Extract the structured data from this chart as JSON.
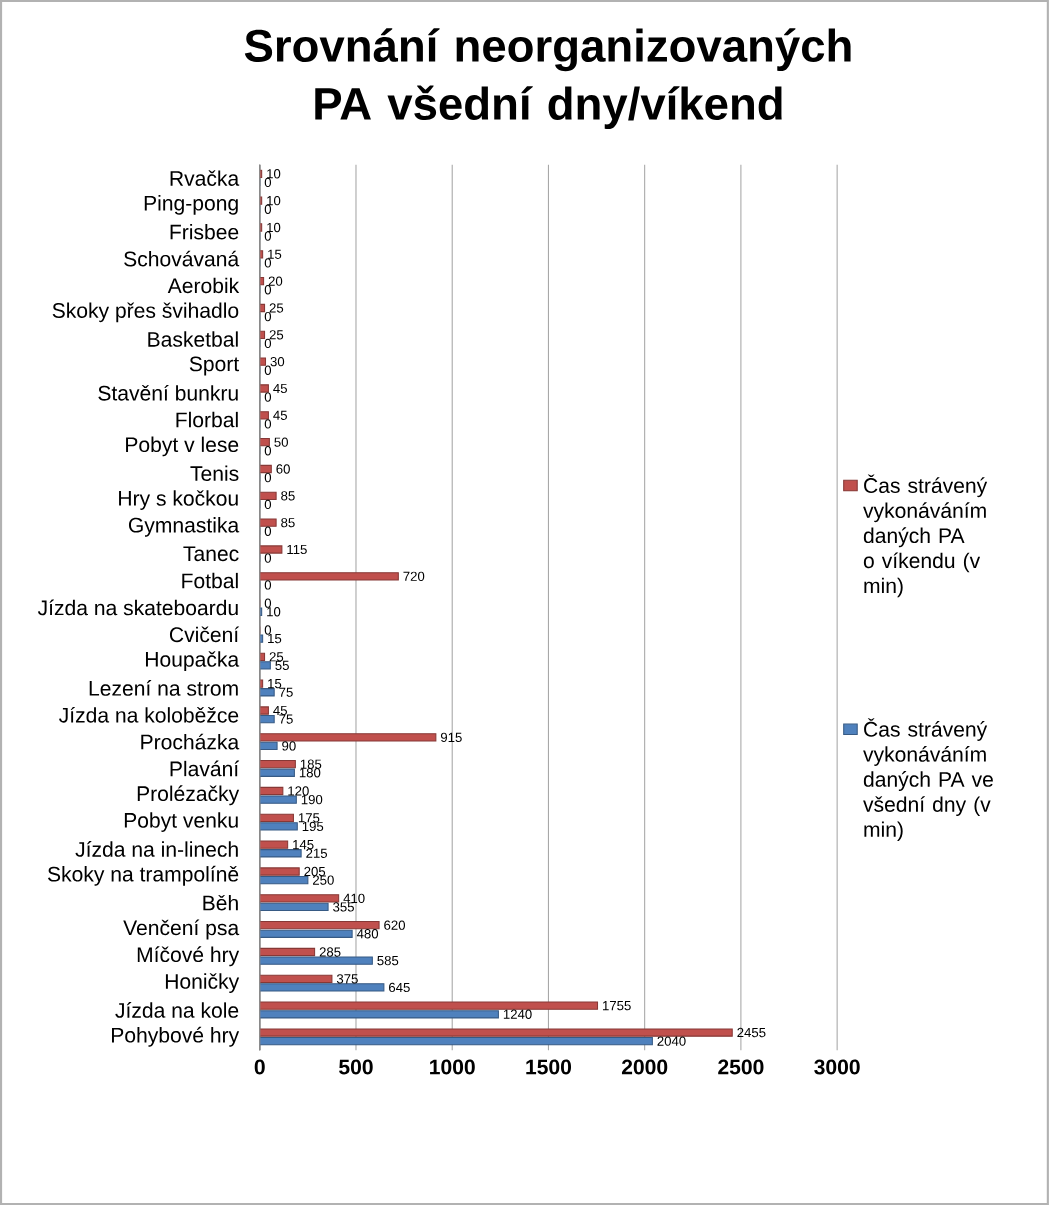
{
  "chart_data": {
    "type": "bar",
    "orientation": "horizontal",
    "title": "Srovnání neorganizovaných PA všední dny/víkend",
    "categories": [
      "Rvačka",
      "Ping-pong",
      "Frisbee",
      "Schovávaná",
      "Aerobik",
      "Skoky přes švihadlo",
      "Basketbal",
      "Sport",
      "Stavění bunkru",
      "Florbal",
      "Pobyt v lese",
      "Tenis",
      "Hry s kočkou",
      "Gymnastika",
      "Tanec",
      "Fotbal",
      "Jízda na skateboardu",
      "Cvičení",
      "Houpačka",
      "Lezení na strom",
      "Jízda na koloběžce",
      "Procházka",
      "Plavání",
      "Prolézačky",
      "Pobyt venku",
      "Jízda na in-linech",
      "Skoky na trampolíně",
      "Běh",
      "Venčení psa",
      "Míčové hry",
      "Honičky",
      "Jízda na kole",
      "Pohybové hry"
    ],
    "series": [
      {
        "name": "Čas strávený vykonáváním daných PA o víkendu (v min)",
        "color": "#c0504d",
        "values": [
          10,
          10,
          10,
          15,
          20,
          25,
          25,
          30,
          45,
          45,
          50,
          60,
          85,
          85,
          115,
          720,
          0,
          0,
          25,
          15,
          45,
          915,
          185,
          120,
          175,
          145,
          205,
          410,
          620,
          285,
          375,
          1755,
          2455
        ]
      },
      {
        "name": "Čas strávený vykonáváním daných PA ve všední dny (v min)",
        "color": "#4f81bd",
        "values": [
          0,
          0,
          0,
          0,
          0,
          0,
          0,
          0,
          0,
          0,
          0,
          0,
          0,
          0,
          0,
          0,
          10,
          15,
          55,
          75,
          75,
          90,
          180,
          190,
          195,
          215,
          250,
          355,
          480,
          585,
          645,
          1240,
          2040
        ]
      }
    ],
    "xlim": [
      0,
      3000
    ],
    "xticks": [
      0,
      500,
      1000,
      1500,
      2000,
      2500,
      3000
    ],
    "grid": "x",
    "legend": "right",
    "data_labels": true
  }
}
